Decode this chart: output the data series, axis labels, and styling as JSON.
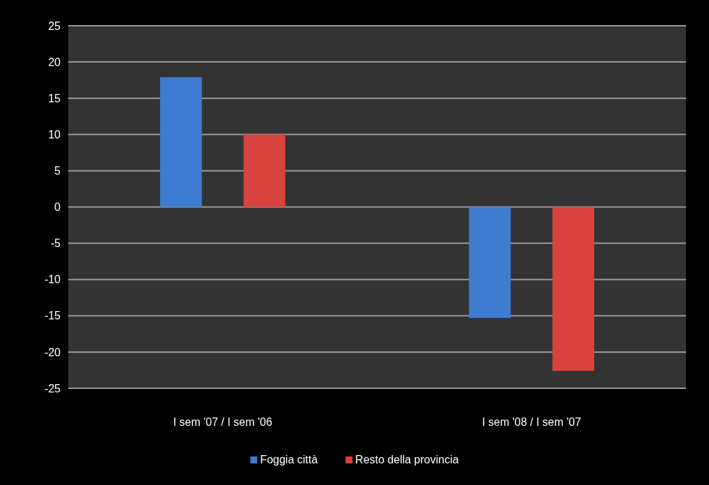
{
  "chart_data": {
    "type": "bar",
    "categories": [
      "I sem '07 / I sem '06",
      "I sem '08 / I sem '07"
    ],
    "series": [
      {
        "name": "Foggia città",
        "color": "#3d7cd0",
        "values": [
          17.9,
          -15.3
        ]
      },
      {
        "name": "Resto della provincia",
        "color": "#d8423f",
        "values": [
          10,
          -22.6
        ]
      }
    ],
    "ylim": [
      -25,
      25
    ],
    "yticks": [
      -25,
      -20,
      -15,
      -10,
      -5,
      0,
      5,
      10,
      15,
      20,
      25
    ],
    "grid": "y",
    "legend": "bottom"
  }
}
